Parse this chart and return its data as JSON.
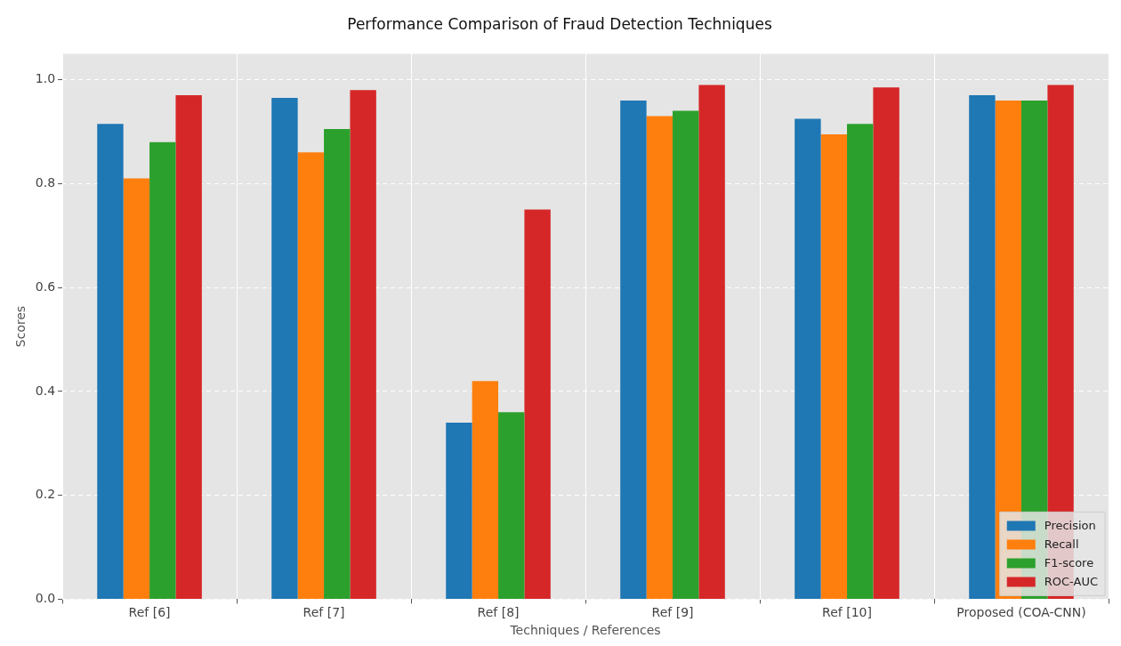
{
  "chart_data": {
    "type": "bar",
    "title": "Performance Comparison of Fraud Detection Techniques",
    "xlabel": "Techniques / References",
    "ylabel": "Scores",
    "categories": [
      "Ref [6]",
      "Ref [7]",
      "Ref [8]",
      "Ref [9]",
      "Ref [10]",
      "Proposed (COA-CNN)"
    ],
    "series": [
      {
        "name": "Precision",
        "color": "#1f77b4",
        "values": [
          0.915,
          0.965,
          0.34,
          0.96,
          0.925,
          0.97
        ]
      },
      {
        "name": "Recall",
        "color": "#ff7f0e",
        "values": [
          0.81,
          0.86,
          0.42,
          0.93,
          0.895,
          0.96
        ]
      },
      {
        "name": "F1-score",
        "color": "#2ca02c",
        "values": [
          0.88,
          0.905,
          0.36,
          0.94,
          0.915,
          0.96
        ]
      },
      {
        "name": "ROC-AUC",
        "color": "#d62728",
        "values": [
          0.97,
          0.98,
          0.75,
          0.99,
          0.985,
          0.99
        ]
      }
    ],
    "ylim": [
      0,
      1.05
    ],
    "yticks": [
      {
        "value": 0,
        "label": "0.0"
      },
      {
        "value": 0.2,
        "label": "0.2"
      },
      {
        "value": 0.4,
        "label": "0.4"
      },
      {
        "value": 0.6,
        "label": "0.6"
      },
      {
        "value": 0.8,
        "label": "0.8"
      },
      {
        "value": 1,
        "label": "1.0"
      }
    ],
    "grid": true,
    "legend": "bottom right"
  }
}
